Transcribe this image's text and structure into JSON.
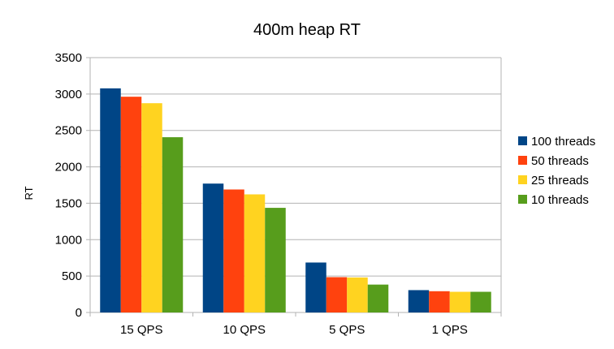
{
  "chart_data": {
    "type": "bar",
    "title": "400m heap RT",
    "xlabel": "",
    "ylabel": "RT",
    "ylim": [
      0,
      3500
    ],
    "yticks": [
      0,
      500,
      1000,
      1500,
      2000,
      2500,
      3000,
      3500
    ],
    "grid": true,
    "legend_position": "right",
    "categories": [
      "15 QPS",
      "10 QPS",
      "5 QPS",
      "1 QPS"
    ],
    "series": [
      {
        "name": "100 threads",
        "color": "#004586",
        "values": [
          3078,
          1770,
          686,
          307
        ]
      },
      {
        "name": "50 threads",
        "color": "#ff420e",
        "values": [
          2963,
          1689,
          485,
          292
        ]
      },
      {
        "name": "25 threads",
        "color": "#ffd320",
        "values": [
          2874,
          1622,
          481,
          284
        ]
      },
      {
        "name": "10 threads",
        "color": "#579d1c",
        "values": [
          2407,
          1437,
          383,
          284
        ]
      }
    ]
  }
}
